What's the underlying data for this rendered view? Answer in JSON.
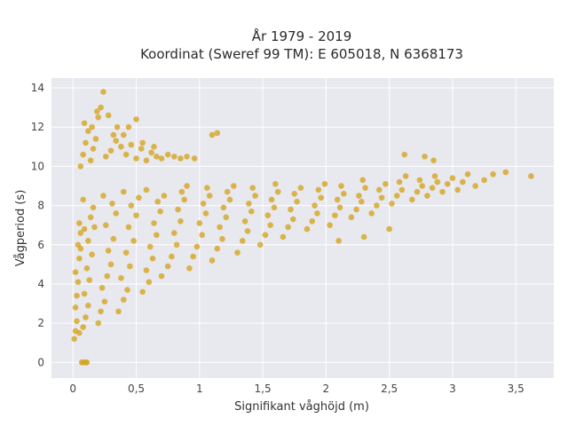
{
  "chart_data": {
    "type": "scatter",
    "title_line1": "År 1979 - 2019",
    "title_line2": "Koordinat (Sweref 99 TM): E 605018, N 6368173",
    "xlabel": "Signifikant våghöjd (m)",
    "ylabel": "Vågperiod (s)",
    "xlim": [
      -0.17,
      3.8
    ],
    "ylim": [
      -0.8,
      14.5
    ],
    "x_ticks": [
      0,
      0.5,
      1,
      1.5,
      2,
      2.5,
      3,
      3.5
    ],
    "x_tick_labels": [
      "0",
      "0,5",
      "1",
      "1,5",
      "2",
      "2,5",
      "3",
      "3,5"
    ],
    "y_ticks": [
      0,
      2,
      4,
      6,
      8,
      10,
      12,
      14
    ],
    "y_tick_labels": [
      "0",
      "2",
      "4",
      "6",
      "8",
      "10",
      "12",
      "14"
    ],
    "grid": true,
    "marker_color": "#D4A520",
    "background_color": "#E8E8EF",
    "points": [
      [
        0.01,
        1.2
      ],
      [
        0.02,
        1.6
      ],
      [
        0.03,
        2.1
      ],
      [
        0.02,
        2.8
      ],
      [
        0.03,
        3.4
      ],
      [
        0.04,
        4.1
      ],
      [
        0.02,
        4.6
      ],
      [
        0.05,
        5.3
      ],
      [
        0.04,
        6.0
      ],
      [
        0.06,
        6.6
      ],
      [
        0.05,
        7.1
      ],
      [
        0.07,
        0.0
      ],
      [
        0.08,
        0.0
      ],
      [
        0.1,
        0.0
      ],
      [
        0.11,
        0.0
      ],
      [
        0.05,
        1.5
      ],
      [
        0.08,
        1.8
      ],
      [
        0.1,
        2.3
      ],
      [
        0.12,
        2.9
      ],
      [
        0.09,
        3.5
      ],
      [
        0.13,
        4.2
      ],
      [
        0.11,
        4.8
      ],
      [
        0.15,
        5.5
      ],
      [
        0.12,
        6.2
      ],
      [
        0.17,
        6.9
      ],
      [
        0.14,
        7.4
      ],
      [
        0.16,
        7.9
      ],
      [
        0.08,
        8.3
      ],
      [
        0.06,
        5.8
      ],
      [
        0.09,
        6.8
      ],
      [
        0.2,
        2.0
      ],
      [
        0.22,
        2.6
      ],
      [
        0.25,
        3.1
      ],
      [
        0.23,
        3.8
      ],
      [
        0.27,
        4.4
      ],
      [
        0.3,
        5.0
      ],
      [
        0.28,
        5.7
      ],
      [
        0.32,
        6.3
      ],
      [
        0.26,
        7.0
      ],
      [
        0.34,
        7.6
      ],
      [
        0.31,
        8.1
      ],
      [
        0.24,
        8.5
      ],
      [
        0.36,
        2.6
      ],
      [
        0.4,
        3.2
      ],
      [
        0.43,
        3.7
      ],
      [
        0.38,
        4.3
      ],
      [
        0.45,
        4.9
      ],
      [
        0.42,
        5.6
      ],
      [
        0.48,
        6.2
      ],
      [
        0.44,
        6.9
      ],
      [
        0.5,
        7.5
      ],
      [
        0.46,
        8.0
      ],
      [
        0.52,
        8.4
      ],
      [
        0.4,
        8.7
      ],
      [
        0.55,
        3.6
      ],
      [
        0.6,
        4.1
      ],
      [
        0.58,
        4.7
      ],
      [
        0.63,
        5.3
      ],
      [
        0.61,
        5.9
      ],
      [
        0.66,
        6.5
      ],
      [
        0.64,
        7.1
      ],
      [
        0.69,
        7.7
      ],
      [
        0.67,
        8.2
      ],
      [
        0.72,
        8.5
      ],
      [
        0.58,
        8.8
      ],
      [
        0.7,
        4.4
      ],
      [
        0.75,
        4.9
      ],
      [
        0.78,
        5.4
      ],
      [
        0.82,
        6.0
      ],
      [
        0.8,
        6.6
      ],
      [
        0.85,
        7.2
      ],
      [
        0.83,
        7.8
      ],
      [
        0.88,
        8.3
      ],
      [
        0.86,
        8.7
      ],
      [
        0.9,
        9.0
      ],
      [
        0.92,
        4.8
      ],
      [
        0.95,
        5.4
      ],
      [
        0.98,
        5.9
      ],
      [
        1.02,
        6.5
      ],
      [
        1.0,
        7.1
      ],
      [
        1.05,
        7.6
      ],
      [
        1.03,
        8.1
      ],
      [
        1.08,
        8.5
      ],
      [
        1.06,
        8.9
      ],
      [
        1.1,
        5.2
      ],
      [
        1.14,
        5.8
      ],
      [
        1.18,
        6.3
      ],
      [
        1.16,
        6.9
      ],
      [
        1.21,
        7.4
      ],
      [
        1.19,
        7.9
      ],
      [
        1.24,
        8.3
      ],
      [
        1.22,
        8.7
      ],
      [
        1.27,
        9.0
      ],
      [
        1.3,
        5.6
      ],
      [
        1.34,
        6.2
      ],
      [
        1.38,
        6.7
      ],
      [
        1.36,
        7.2
      ],
      [
        1.41,
        7.7
      ],
      [
        1.39,
        8.1
      ],
      [
        1.44,
        8.5
      ],
      [
        1.42,
        8.9
      ],
      [
        1.48,
        6.0
      ],
      [
        1.52,
        6.5
      ],
      [
        1.56,
        7.0
      ],
      [
        1.54,
        7.5
      ],
      [
        1.59,
        7.9
      ],
      [
        1.57,
        8.3
      ],
      [
        1.62,
        8.7
      ],
      [
        1.6,
        9.1
      ],
      [
        1.66,
        6.4
      ],
      [
        1.7,
        6.9
      ],
      [
        1.74,
        7.3
      ],
      [
        1.72,
        7.8
      ],
      [
        1.77,
        8.2
      ],
      [
        1.75,
        8.6
      ],
      [
        1.8,
        8.9
      ],
      [
        1.85,
        6.8
      ],
      [
        1.89,
        7.2
      ],
      [
        1.93,
        7.6
      ],
      [
        1.91,
        8.0
      ],
      [
        1.96,
        8.4
      ],
      [
        1.94,
        8.8
      ],
      [
        1.99,
        9.1
      ],
      [
        2.03,
        7.0
      ],
      [
        2.07,
        7.5
      ],
      [
        2.11,
        7.9
      ],
      [
        2.09,
        8.3
      ],
      [
        2.14,
        8.6
      ],
      [
        2.12,
        9.0
      ],
      [
        2.2,
        7.4
      ],
      [
        2.24,
        7.8
      ],
      [
        2.28,
        8.2
      ],
      [
        2.26,
        8.5
      ],
      [
        2.31,
        8.9
      ],
      [
        2.29,
        9.3
      ],
      [
        2.36,
        7.6
      ],
      [
        2.4,
        8.0
      ],
      [
        2.44,
        8.4
      ],
      [
        2.42,
        8.8
      ],
      [
        2.47,
        9.1
      ],
      [
        2.52,
        8.1
      ],
      [
        2.56,
        8.5
      ],
      [
        2.6,
        8.8
      ],
      [
        2.58,
        9.2
      ],
      [
        2.63,
        9.5
      ],
      [
        2.68,
        8.3
      ],
      [
        2.72,
        8.7
      ],
      [
        2.76,
        9.0
      ],
      [
        2.74,
        9.3
      ],
      [
        2.8,
        8.5
      ],
      [
        2.84,
        8.9
      ],
      [
        2.88,
        9.2
      ],
      [
        2.86,
        9.5
      ],
      [
        2.92,
        8.7
      ],
      [
        2.96,
        9.1
      ],
      [
        3.0,
        9.4
      ],
      [
        3.04,
        8.8
      ],
      [
        3.08,
        9.2
      ],
      [
        3.12,
        9.6
      ],
      [
        3.18,
        9.0
      ],
      [
        3.25,
        9.3
      ],
      [
        3.32,
        9.6
      ],
      [
        3.42,
        9.7
      ],
      [
        3.62,
        9.5
      ],
      [
        2.5,
        6.8
      ],
      [
        2.3,
        6.4
      ],
      [
        2.1,
        6.2
      ],
      [
        2.62,
        10.6
      ],
      [
        2.78,
        10.5
      ],
      [
        2.85,
        10.3
      ],
      [
        0.06,
        10.0
      ],
      [
        0.08,
        10.6
      ],
      [
        0.1,
        11.2
      ],
      [
        0.12,
        11.8
      ],
      [
        0.09,
        12.2
      ],
      [
        0.14,
        10.3
      ],
      [
        0.16,
        10.9
      ],
      [
        0.18,
        11.4
      ],
      [
        0.15,
        12.0
      ],
      [
        0.2,
        12.5
      ],
      [
        0.22,
        13.0
      ],
      [
        0.24,
        13.8
      ],
      [
        0.19,
        12.8
      ],
      [
        0.26,
        10.5
      ],
      [
        0.3,
        10.8
      ],
      [
        0.34,
        11.3
      ],
      [
        0.38,
        11.0
      ],
      [
        0.42,
        10.6
      ],
      [
        0.46,
        11.1
      ],
      [
        0.5,
        10.4
      ],
      [
        0.54,
        10.9
      ],
      [
        0.58,
        10.3
      ],
      [
        0.62,
        10.7
      ],
      [
        0.66,
        10.5
      ],
      [
        0.7,
        10.4
      ],
      [
        0.75,
        10.6
      ],
      [
        0.8,
        10.5
      ],
      [
        0.85,
        10.4
      ],
      [
        0.9,
        10.5
      ],
      [
        0.96,
        10.4
      ],
      [
        0.5,
        12.4
      ],
      [
        0.4,
        11.6
      ],
      [
        0.55,
        11.2
      ],
      [
        1.1,
        11.6
      ],
      [
        1.14,
        11.7
      ],
      [
        0.35,
        12.0
      ],
      [
        0.28,
        12.6
      ],
      [
        0.44,
        12.0
      ],
      [
        0.32,
        11.6
      ],
      [
        0.64,
        11.0
      ]
    ]
  }
}
